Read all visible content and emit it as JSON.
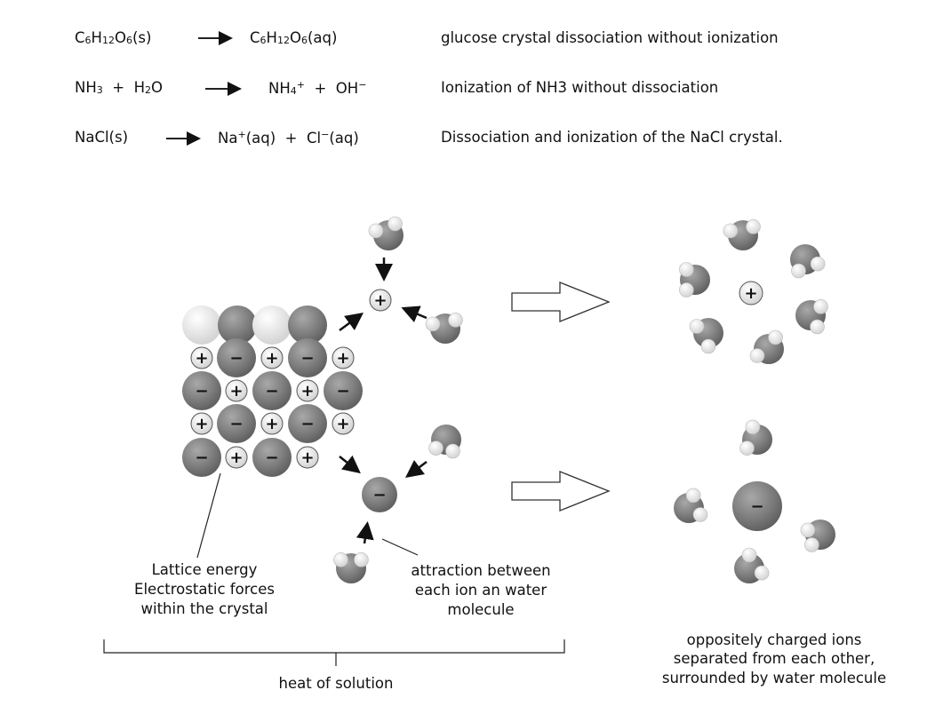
{
  "equations": [
    {
      "left": {
        "parts": [
          "C",
          "6",
          "H",
          "12",
          "O",
          "6",
          "(s)"
        ]
      },
      "right": {
        "parts": [
          "C",
          "6",
          "H",
          "12",
          "O",
          "6",
          "(aq)"
        ]
      },
      "description": "glucose crystal dissociation without ionization"
    },
    {
      "left": {
        "a": "NH",
        "a_sub": "3",
        "plus": "+",
        "b": "H",
        "b_sub": "2",
        "b_end": "O"
      },
      "right": {
        "a": "NH",
        "a_sub": "4",
        "a_sup": "+",
        "plus": "+",
        "b": "OH",
        "b_sup": "−"
      },
      "description": "Ionization of NH3 without dissociation"
    },
    {
      "left": {
        "a": "NaCl(s)"
      },
      "right": {
        "a": "Na",
        "a_sup": "+",
        "a_end": "(aq)",
        "plus": "+",
        "b": "Cl",
        "b_sup": "−",
        "b_end": "(aq)"
      },
      "description": "Dissociation and ionization of the NaCl crystal."
    }
  ],
  "diagram": {
    "crystal_rows": [
      [
        "+",
        "−",
        "+",
        "−",
        "+"
      ],
      [
        "−",
        "+",
        "−",
        "+",
        "−"
      ],
      [
        "+",
        "−",
        "+",
        "−",
        "+"
      ],
      [
        "−",
        "+",
        "−",
        "+"
      ]
    ],
    "plus_sign": "+",
    "minus_sign": "−",
    "lattice_label": [
      "Lattice energy",
      "Electrostatic forces",
      "within the crystal"
    ],
    "attraction_label": [
      "attraction between",
      "each ion an water",
      "molecule"
    ],
    "heat_label": "heat of solution",
    "result_label": [
      "oppositely charged ions",
      "separated from each other,",
      "surrounded by water molecule"
    ],
    "colors": {
      "anion": "#7a7a7a",
      "cation": "#eeeeee",
      "water_oxygen": "#808080",
      "water_hydrogen": "#f2f2f2"
    }
  }
}
